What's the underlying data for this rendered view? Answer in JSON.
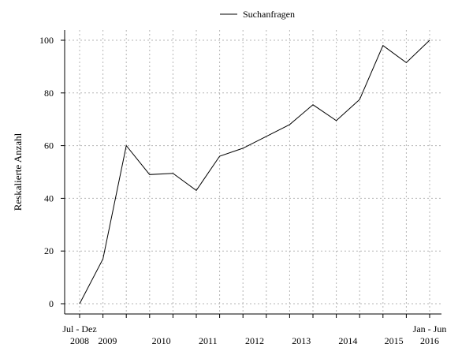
{
  "chart_data": {
    "type": "line",
    "ylabel": "Reskalierte Anzahl",
    "ylim": [
      0,
      100
    ],
    "yticks": [
      0,
      20,
      40,
      60,
      80,
      100
    ],
    "grid": true,
    "legend_position": "top-center",
    "x_start_label": [
      "Jul - Dez",
      "2008"
    ],
    "x_end_label": [
      "Jan - Jun",
      "2016"
    ],
    "year_labels": [
      "2009",
      "2010",
      "2011",
      "2012",
      "2013",
      "2014",
      "2015"
    ],
    "x": [
      "Jul-Dez 2008",
      "Jan-Jun 2009",
      "Jul-Dez 2009",
      "Jan-Jun 2010",
      "Jul-Dez 2010",
      "Jan-Jun 2011",
      "Jul-Dez 2011",
      "Jan-Jun 2012",
      "Jul-Dez 2012",
      "Jan-Jun 2013",
      "Jul-Dez 2013",
      "Jan-Jun 2014",
      "Jul-Dez 2014",
      "Jan-Jun 2015",
      "Jul-Dez 2015",
      "Jan-Jun 2016"
    ],
    "series": [
      {
        "name": "Suchanfragen",
        "color": "#000000",
        "values": [
          0,
          17,
          60,
          49,
          49.5,
          43,
          56,
          59,
          63.5,
          68,
          75.5,
          69.5,
          77.5,
          98,
          91.5,
          100
        ]
      }
    ]
  }
}
